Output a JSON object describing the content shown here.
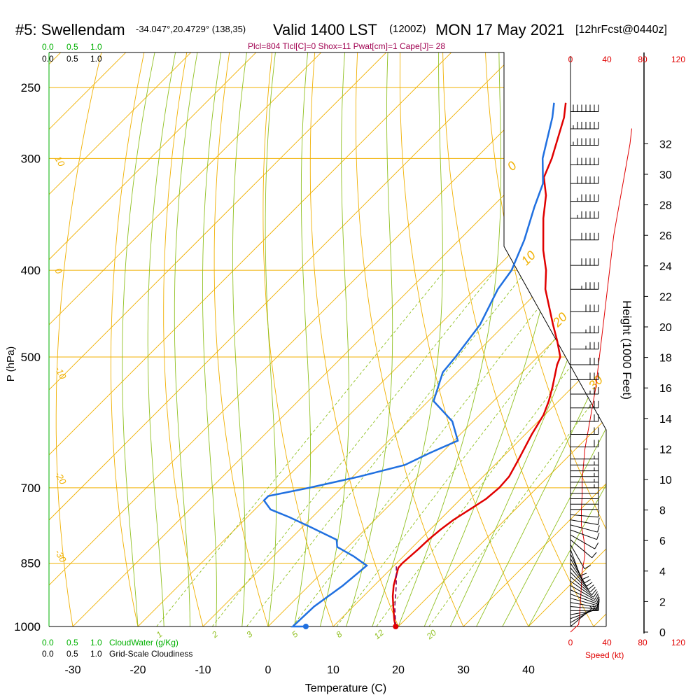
{
  "header": {
    "station": "#5: Swellendam",
    "coords": "-34.047°,20.4729° (138,35)",
    "valid": "Valid 1400 LST",
    "utc": "(1200Z)",
    "date": "MON 17 May 2021",
    "forecast": "[12hrFcst@0440z]",
    "indices": "Plcl=804 Tlcl[C]=0 Shox=11 Pwat[cm]=1 Cape[J]= 28"
  },
  "labels": {
    "ylabel_left": "P (hPa)",
    "xlabel": "Temperature (C)",
    "ylabel_right": "Height (1000 Feet)",
    "speed_label": "Speed (kt)",
    "cloudwater_label": "CloudWater (g/Kg)",
    "cloudiness_label": "Grid-Scale Cloudiness",
    "cw_ticks": [
      "0.0",
      "0.5",
      "1.0"
    ],
    "cloud_ticks": [
      "0.0",
      "0.5",
      "1.0"
    ],
    "speed_ticks": [
      "0",
      "40",
      "80",
      "120"
    ]
  },
  "colors": {
    "isobar": "#f0b000",
    "dry_adiabat": "#f0b000",
    "moist_adiabat": "#90c020",
    "mixing_ratio": "#90c020",
    "temperature": "#e00000",
    "dewpoint": "#2070e0",
    "parcel": "#800060",
    "cloudwater": "#00b000",
    "speed": "#e00000",
    "indices": "#a00050"
  },
  "chart_data": {
    "type": "line",
    "title": "#5: Swellendam  Valid 1400 LST (1200Z) MON 17 May 2021",
    "xlabel": "Temperature (C)",
    "ylabel": "P (hPa)",
    "xlim": [
      -30,
      40
    ],
    "ylim": [
      1000,
      250
    ],
    "x_ticks": [
      -30,
      -20,
      -10,
      0,
      10,
      20,
      30,
      40
    ],
    "p_ticks": [
      250,
      300,
      400,
      500,
      700,
      850,
      1000
    ],
    "height_ticks_kft": [
      0,
      2,
      4,
      6,
      8,
      10,
      12,
      14,
      16,
      18,
      20,
      22,
      24,
      26,
      28,
      30,
      32
    ],
    "dry_adiabat_labels": [
      "10",
      "0",
      "-10",
      "-20",
      "-30",
      "0",
      "10",
      "20",
      "30"
    ],
    "mixing_ratio_labels": [
      "1",
      "2",
      "3",
      "5",
      "8",
      "12",
      "20"
    ],
    "series": [
      {
        "name": "Temperature",
        "points": [
          [
            19.6,
            1000
          ],
          [
            18.5,
            985
          ],
          [
            16.5,
            955
          ],
          [
            14.5,
            925
          ],
          [
            13.0,
            900
          ],
          [
            11.0,
            860
          ],
          [
            10.9,
            850
          ],
          [
            11.2,
            820
          ],
          [
            11.3,
            800
          ],
          [
            11.6,
            780
          ],
          [
            12.1,
            760
          ],
          [
            13.0,
            740
          ],
          [
            13.9,
            720
          ],
          [
            14.2,
            700
          ],
          [
            14.0,
            680
          ],
          [
            12.8,
            650
          ],
          [
            11.0,
            610
          ],
          [
            9.8,
            580
          ],
          [
            8.5,
            560
          ],
          [
            6.9,
            540
          ],
          [
            4.2,
            510
          ],
          [
            3.5,
            500
          ],
          [
            0.6,
            480
          ],
          [
            -2.6,
            460
          ],
          [
            -9.2,
            420
          ],
          [
            -12.0,
            400
          ],
          [
            -15.5,
            380
          ],
          [
            -20.4,
            350
          ],
          [
            -23.5,
            330
          ],
          [
            -26.6,
            315
          ],
          [
            -28.3,
            300
          ],
          [
            -32.7,
            270
          ],
          [
            -34.7,
            260
          ]
        ]
      },
      {
        "name": "Dewpoint",
        "points": [
          [
            5.8,
            1000
          ],
          [
            3.8,
            1000
          ],
          [
            4.0,
            950
          ],
          [
            5.2,
            900
          ],
          [
            5.8,
            855
          ],
          [
            2.4,
            835
          ],
          [
            -1.6,
            815
          ],
          [
            -2.8,
            800
          ],
          [
            -8.6,
            775
          ],
          [
            -13.5,
            755
          ],
          [
            -17.6,
            740
          ],
          [
            -20.0,
            723
          ],
          [
            -20.0,
            715
          ],
          [
            -15.0,
            700
          ],
          [
            -9.0,
            680
          ],
          [
            -3.8,
            660
          ],
          [
            -1.8,
            640
          ],
          [
            0.6,
            620
          ],
          [
            -3.2,
            590
          ],
          [
            -9.2,
            560
          ],
          [
            -12.2,
            520
          ],
          [
            -12.6,
            500
          ],
          [
            -13.8,
            460
          ],
          [
            -16.5,
            420
          ],
          [
            -17.3,
            400
          ],
          [
            -20.0,
            370
          ],
          [
            -23.5,
            340
          ],
          [
            -25.8,
            320
          ],
          [
            -29.7,
            300
          ],
          [
            -34.5,
            270
          ],
          [
            -36.5,
            260
          ]
        ]
      },
      {
        "name": "Parcel",
        "points": [
          [
            19.6,
            1000
          ],
          [
            16.4,
            950
          ],
          [
            13.4,
            900
          ],
          [
            10.0,
            850
          ]
        ]
      }
    ],
    "wind_speed_kt": [
      [
        0,
        0
      ],
      [
        0.5,
        9
      ],
      [
        1,
        10
      ],
      [
        2,
        11
      ],
      [
        3,
        12
      ],
      [
        4,
        13
      ],
      [
        5,
        16
      ],
      [
        6,
        15
      ],
      [
        7,
        12
      ],
      [
        7.5,
        12
      ],
      [
        8,
        12
      ],
      [
        9,
        13
      ],
      [
        10,
        13
      ],
      [
        12,
        16
      ],
      [
        14,
        22
      ],
      [
        16,
        28
      ],
      [
        18,
        32
      ],
      [
        20,
        36
      ],
      [
        22,
        40
      ],
      [
        24,
        44
      ],
      [
        26,
        48
      ],
      [
        28,
        54
      ],
      [
        30,
        60
      ],
      [
        32,
        66
      ],
      [
        33,
        68
      ]
    ],
    "wind_barbs": [
      {
        "p": 1000,
        "dir": 230,
        "kt": 5
      },
      {
        "p": 990,
        "dir": 240,
        "kt": 5
      },
      {
        "p": 980,
        "dir": 250,
        "kt": 5
      },
      {
        "p": 970,
        "dir": 260,
        "kt": 10
      },
      {
        "p": 960,
        "dir": 270,
        "kt": 10
      },
      {
        "p": 950,
        "dir": 275,
        "kt": 10
      },
      {
        "p": 940,
        "dir": 280,
        "kt": 10
      },
      {
        "p": 930,
        "dir": 285,
        "kt": 10
      },
      {
        "p": 920,
        "dir": 290,
        "kt": 10
      },
      {
        "p": 910,
        "dir": 295,
        "kt": 10
      },
      {
        "p": 900,
        "dir": 300,
        "kt": 10
      },
      {
        "p": 890,
        "dir": 305,
        "kt": 10
      },
      {
        "p": 880,
        "dir": 310,
        "kt": 10
      },
      {
        "p": 870,
        "dir": 315,
        "kt": 10
      },
      {
        "p": 860,
        "dir": 320,
        "kt": 10
      },
      {
        "p": 850,
        "dir": 325,
        "kt": 10
      },
      {
        "p": 840,
        "dir": 330,
        "kt": 10
      },
      {
        "p": 830,
        "dir": 335,
        "kt": 10
      },
      {
        "p": 820,
        "dir": 340,
        "kt": 10
      },
      {
        "p": 810,
        "dir": 330,
        "kt": 10
      },
      {
        "p": 800,
        "dir": 310,
        "kt": 10
      },
      {
        "p": 790,
        "dir": 300,
        "kt": 10
      },
      {
        "p": 780,
        "dir": 290,
        "kt": 10
      },
      {
        "p": 770,
        "dir": 285,
        "kt": 10
      },
      {
        "p": 760,
        "dir": 280,
        "kt": 10
      },
      {
        "p": 750,
        "dir": 275,
        "kt": 10
      },
      {
        "p": 740,
        "dir": 270,
        "kt": 10
      },
      {
        "p": 730,
        "dir": 270,
        "kt": 10
      },
      {
        "p": 720,
        "dir": 270,
        "kt": 10
      },
      {
        "p": 710,
        "dir": 270,
        "kt": 10
      },
      {
        "p": 700,
        "dir": 270,
        "kt": 15
      },
      {
        "p": 690,
        "dir": 270,
        "kt": 15
      },
      {
        "p": 680,
        "dir": 270,
        "kt": 15
      },
      {
        "p": 670,
        "dir": 270,
        "kt": 15
      },
      {
        "p": 660,
        "dir": 270,
        "kt": 15
      },
      {
        "p": 650,
        "dir": 270,
        "kt": 15
      },
      {
        "p": 630,
        "dir": 270,
        "kt": 20
      },
      {
        "p": 610,
        "dir": 270,
        "kt": 20
      },
      {
        "p": 590,
        "dir": 270,
        "kt": 20
      },
      {
        "p": 570,
        "dir": 270,
        "kt": 25
      },
      {
        "p": 550,
        "dir": 270,
        "kt": 25
      },
      {
        "p": 530,
        "dir": 270,
        "kt": 30
      },
      {
        "p": 510,
        "dir": 270,
        "kt": 30
      },
      {
        "p": 490,
        "dir": 270,
        "kt": 35
      },
      {
        "p": 470,
        "dir": 270,
        "kt": 35
      },
      {
        "p": 445,
        "dir": 270,
        "kt": 40
      },
      {
        "p": 420,
        "dir": 270,
        "kt": 45
      },
      {
        "p": 395,
        "dir": 270,
        "kt": 50
      },
      {
        "p": 370,
        "dir": 270,
        "kt": 50
      },
      {
        "p": 350,
        "dir": 270,
        "kt": 55
      },
      {
        "p": 335,
        "dir": 270,
        "kt": 55
      },
      {
        "p": 320,
        "dir": 270,
        "kt": 60
      },
      {
        "p": 305,
        "dir": 270,
        "kt": 60
      },
      {
        "p": 290,
        "dir": 270,
        "kt": 65
      },
      {
        "p": 278,
        "dir": 270,
        "kt": 65
      },
      {
        "p": 266,
        "dir": 270,
        "kt": 70
      }
    ]
  }
}
